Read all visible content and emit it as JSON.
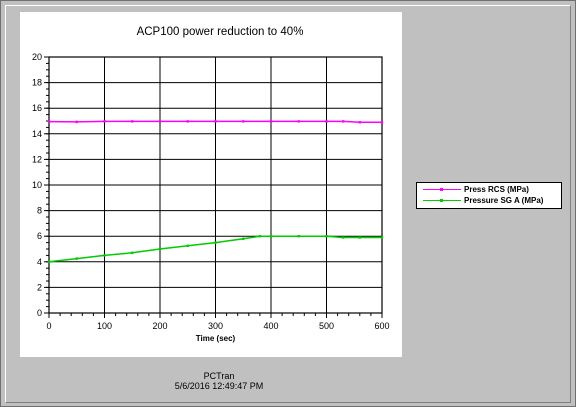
{
  "chart_data": {
    "type": "line",
    "title": "ACP100 power reduction to 40%",
    "xlabel": "Time (sec)",
    "ylabel": "",
    "xlim": [
      0,
      600
    ],
    "ylim": [
      0,
      20
    ],
    "xticks": [
      0,
      100,
      200,
      300,
      400,
      500,
      600
    ],
    "yticks": [
      0,
      2,
      4,
      6,
      8,
      10,
      12,
      14,
      16,
      18,
      20
    ],
    "grid": true,
    "legend_position": "right",
    "series": [
      {
        "name": "Press RCS (MPa)",
        "color": "#ff00ff",
        "x": [
          0,
          50,
          100,
          150,
          200,
          250,
          300,
          350,
          400,
          450,
          500,
          530,
          560,
          600
        ],
        "y": [
          14.95,
          14.93,
          14.97,
          14.97,
          14.97,
          14.97,
          14.97,
          14.97,
          14.97,
          14.97,
          14.97,
          14.97,
          14.9,
          14.9
        ]
      },
      {
        "name": "Pressure SG A (MPa)",
        "color": "#00cc00",
        "x": [
          0,
          50,
          100,
          150,
          200,
          250,
          300,
          350,
          380,
          400,
          450,
          500,
          530,
          560,
          600
        ],
        "y": [
          4.0,
          4.25,
          4.5,
          4.7,
          5.0,
          5.25,
          5.5,
          5.8,
          6.0,
          6.0,
          6.0,
          6.0,
          5.9,
          5.9,
          5.9
        ]
      }
    ]
  },
  "footer": {
    "app": "PCTran",
    "timestamp": "5/6/2016 12:49:47 PM"
  }
}
